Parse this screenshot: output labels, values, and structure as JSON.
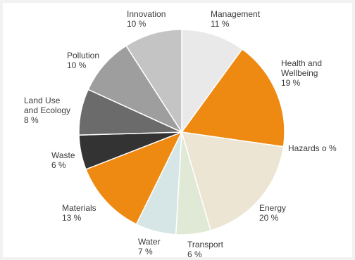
{
  "chart_data": {
    "type": "pie",
    "title": "",
    "start_angle_deg": 0,
    "direction": "clockwise",
    "slices": [
      {
        "name": "Management",
        "label": "Management",
        "pct_label": "11 %",
        "value": 11,
        "color": "#e9e9e9"
      },
      {
        "name": "Health and Wellbeing",
        "label": "Health and Wellbeing",
        "pct_label": "19 %",
        "value": 19,
        "color": "#ee8a11"
      },
      {
        "name": "Hazards",
        "label": "Hazards o %",
        "pct_label": "",
        "value": 0,
        "color": "#ffffff"
      },
      {
        "name": "Energy",
        "label": "Energy",
        "pct_label": "20 %",
        "value": 20,
        "color": "#ede5d3"
      },
      {
        "name": "Transport",
        "label": "Transport",
        "pct_label": "6 %",
        "value": 6,
        "color": "#dfe9d5"
      },
      {
        "name": "Water",
        "label": "Water",
        "pct_label": "7 %",
        "value": 7,
        "color": "#d6e5e5"
      },
      {
        "name": "Materials",
        "label": "Materials",
        "pct_label": "13 %",
        "value": 13,
        "color": "#ee8a11"
      },
      {
        "name": "Waste",
        "label": "Waste",
        "pct_label": "6 %",
        "value": 6,
        "color": "#333333"
      },
      {
        "name": "Land Use and Ecology",
        "label": "Land Use and Ecology",
        "pct_label": "8 %",
        "value": 8,
        "color": "#6b6b6b"
      },
      {
        "name": "Pollution",
        "label": "Pollution",
        "pct_label": "10 %",
        "value": 10,
        "color": "#9e9e9e"
      },
      {
        "name": "Innovation",
        "label": "Innovation",
        "pct_label": "10 %",
        "value": 10,
        "color": "#c4c4c4"
      }
    ],
    "labels": {
      "management": {
        "line1": "Management",
        "pct": "11 %"
      },
      "health": {
        "line1": "Health and",
        "line2": "Wellbeing",
        "pct": "19 %"
      },
      "hazards": {
        "line1": "Hazards o %"
      },
      "energy": {
        "line1": "Energy",
        "pct": "20 %"
      },
      "transport": {
        "line1": "Transport",
        "pct": "6 %"
      },
      "water": {
        "line1": "Water",
        "pct": "7 %"
      },
      "materials": {
        "line1": "Materials",
        "pct": "13 %"
      },
      "waste": {
        "line1": "Waste",
        "pct": "6 %"
      },
      "landuse": {
        "line1": "Land Use",
        "line2": "and Ecology",
        "pct": "8 %"
      },
      "pollution": {
        "line1": "Pollution",
        "pct": "10 %"
      },
      "innovation": {
        "line1": "Innovation",
        "pct": "10 %"
      }
    }
  }
}
